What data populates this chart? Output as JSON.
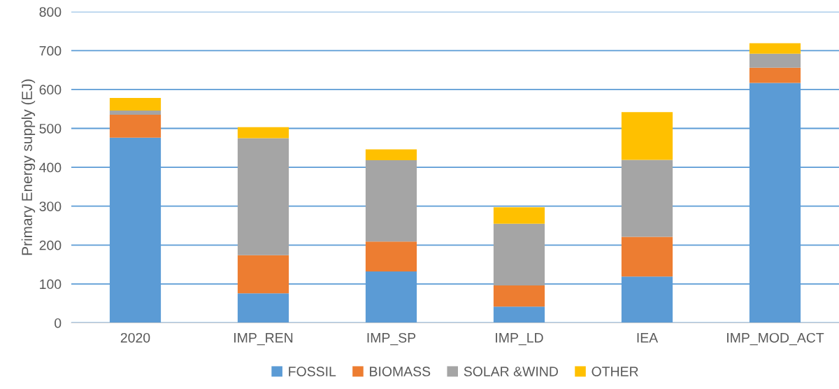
{
  "chart_data": {
    "type": "bar",
    "stacked": true,
    "ylabel": "Primary Energy supply (EJ)",
    "categories": [
      "2020",
      "IMP_REN",
      "IMP_SP",
      "IMP_LD",
      "IEA",
      "IMP_MOD_ACT"
    ],
    "series": [
      {
        "name": "FOSSIL",
        "color": "#5b9bd5",
        "values": [
          476,
          76,
          132,
          42,
          119,
          617
        ]
      },
      {
        "name": "BIOMASS",
        "color": "#ed7d31",
        "values": [
          59,
          98,
          77,
          54,
          102,
          39
        ]
      },
      {
        "name": "SOLAR &WIND",
        "color": "#a5a5a5",
        "values": [
          11,
          301,
          209,
          159,
          198,
          36
        ]
      },
      {
        "name": "OTHER",
        "color": "#ffc000",
        "values": [
          32,
          28,
          28,
          42,
          123,
          27
        ]
      }
    ],
    "ylim": [
      0,
      800
    ],
    "yticks": [
      0,
      100,
      200,
      300,
      400,
      500,
      600,
      700,
      800
    ],
    "grid": "y",
    "legend": "bottom"
  }
}
